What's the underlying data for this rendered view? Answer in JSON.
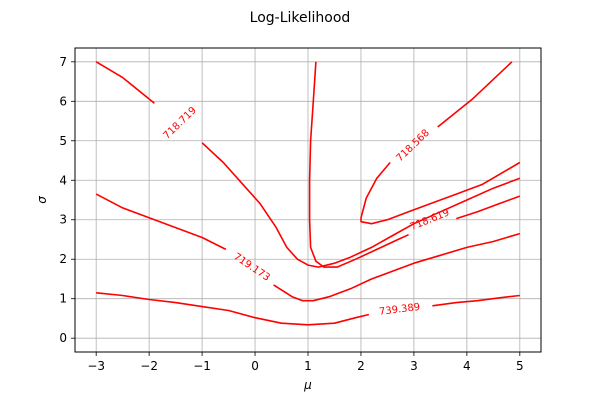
{
  "chart_data": {
    "type": "line",
    "subtype": "contour",
    "title": "Log-Likelihood",
    "xlabel": "μ",
    "ylabel": "σ",
    "xlim": [
      -3.4,
      5.4
    ],
    "ylim": [
      -0.35,
      7.35
    ],
    "xticks": [
      -3,
      -2,
      -1,
      0,
      1,
      2,
      3,
      4,
      5
    ],
    "yticks": [
      0,
      1,
      2,
      3,
      4,
      5,
      6,
      7
    ],
    "grid": true,
    "line_color": "#ff0000",
    "levels": [
      {
        "label": "718.719",
        "label_at": {
          "x": -1.42,
          "y": 5.45
        },
        "label_angle": -44,
        "segments": [
          [
            [
              -3.0,
              7.0
            ],
            [
              -2.5,
              6.6
            ],
            [
              -1.9,
              5.95
            ]
          ],
          [
            [
              -1.0,
              4.95
            ],
            [
              -0.6,
              4.45
            ],
            [
              -0.2,
              3.85
            ],
            [
              0.1,
              3.4
            ],
            [
              0.4,
              2.8
            ],
            [
              0.6,
              2.3
            ],
            [
              0.8,
              2.0
            ],
            [
              1.0,
              1.85
            ],
            [
              1.2,
              1.8
            ],
            [
              1.5,
              1.9
            ],
            [
              1.8,
              2.05
            ],
            [
              2.2,
              2.3
            ],
            [
              2.6,
              2.6
            ],
            [
              3.0,
              2.9
            ],
            [
              3.5,
              3.2
            ],
            [
              4.0,
              3.5
            ],
            [
              4.5,
              3.8
            ],
            [
              5.0,
              4.05
            ]
          ]
        ]
      },
      {
        "label": "719.173",
        "label_at": {
          "x": -0.06,
          "y": 1.8
        },
        "label_angle": 34,
        "segments": [
          [
            [
              -3.0,
              3.65
            ],
            [
              -2.5,
              3.3
            ],
            [
              -2.0,
              3.05
            ],
            [
              -1.5,
              2.8
            ],
            [
              -1.0,
              2.55
            ],
            [
              -0.55,
              2.25
            ]
          ],
          [
            [
              0.35,
              1.35
            ],
            [
              0.7,
              1.05
            ],
            [
              0.9,
              0.95
            ],
            [
              1.1,
              0.95
            ],
            [
              1.4,
              1.05
            ],
            [
              1.8,
              1.25
            ],
            [
              2.2,
              1.5
            ],
            [
              2.6,
              1.7
            ],
            [
              3.0,
              1.9
            ],
            [
              3.5,
              2.1
            ],
            [
              4.0,
              2.3
            ],
            [
              4.5,
              2.45
            ],
            [
              5.0,
              2.65
            ]
          ]
        ]
      },
      {
        "label": "718.568",
        "label_at": {
          "x": 2.98,
          "y": 4.88
        },
        "label_angle": -44,
        "segments": [
          [
            [
              2.55,
              4.45
            ],
            [
              2.3,
              4.05
            ],
            [
              2.1,
              3.55
            ],
            [
              2.0,
              3.05
            ],
            [
              2.0,
              2.95
            ],
            [
              2.2,
              2.9
            ],
            [
              2.5,
              3.0
            ],
            [
              2.9,
              3.2
            ],
            [
              3.3,
              3.4
            ],
            [
              3.8,
              3.65
            ],
            [
              4.3,
              3.9
            ],
            [
              5.0,
              4.45
            ]
          ],
          [
            [
              3.45,
              5.35
            ],
            [
              4.1,
              6.05
            ],
            [
              4.85,
              7.0
            ]
          ]
        ]
      },
      {
        "label": "718.619",
        "label_at": {
          "x": 3.3,
          "y": 3.0
        },
        "label_angle": -22,
        "segments": [
          [
            [
              1.15,
              7.0
            ],
            [
              1.1,
              6.0
            ],
            [
              1.05,
              5.0
            ],
            [
              1.03,
              4.0
            ],
            [
              1.03,
              3.0
            ],
            [
              1.05,
              2.3
            ],
            [
              1.15,
              1.95
            ],
            [
              1.3,
              1.8
            ],
            [
              1.55,
              1.8
            ],
            [
              1.9,
              2.0
            ],
            [
              2.3,
              2.25
            ],
            [
              2.7,
              2.5
            ],
            [
              2.9,
              2.62
            ]
          ],
          [
            [
              3.8,
              3.03
            ],
            [
              4.2,
              3.2
            ],
            [
              4.6,
              3.4
            ],
            [
              5.0,
              3.6
            ]
          ]
        ]
      },
      {
        "label": "739.389",
        "label_at": {
          "x": 2.73,
          "y": 0.73
        },
        "label_angle": -7,
        "segments": [
          [
            [
              -3.0,
              1.15
            ],
            [
              -2.5,
              1.08
            ],
            [
              -2.0,
              0.98
            ],
            [
              -1.5,
              0.9
            ],
            [
              -1.0,
              0.8
            ],
            [
              -0.5,
              0.7
            ],
            [
              0.0,
              0.52
            ],
            [
              0.5,
              0.38
            ],
            [
              1.0,
              0.34
            ],
            [
              1.5,
              0.38
            ],
            [
              1.9,
              0.52
            ],
            [
              2.15,
              0.6
            ]
          ],
          [
            [
              3.35,
              0.82
            ],
            [
              3.8,
              0.9
            ],
            [
              4.2,
              0.95
            ],
            [
              4.6,
              1.02
            ],
            [
              5.0,
              1.08
            ]
          ]
        ]
      }
    ]
  }
}
